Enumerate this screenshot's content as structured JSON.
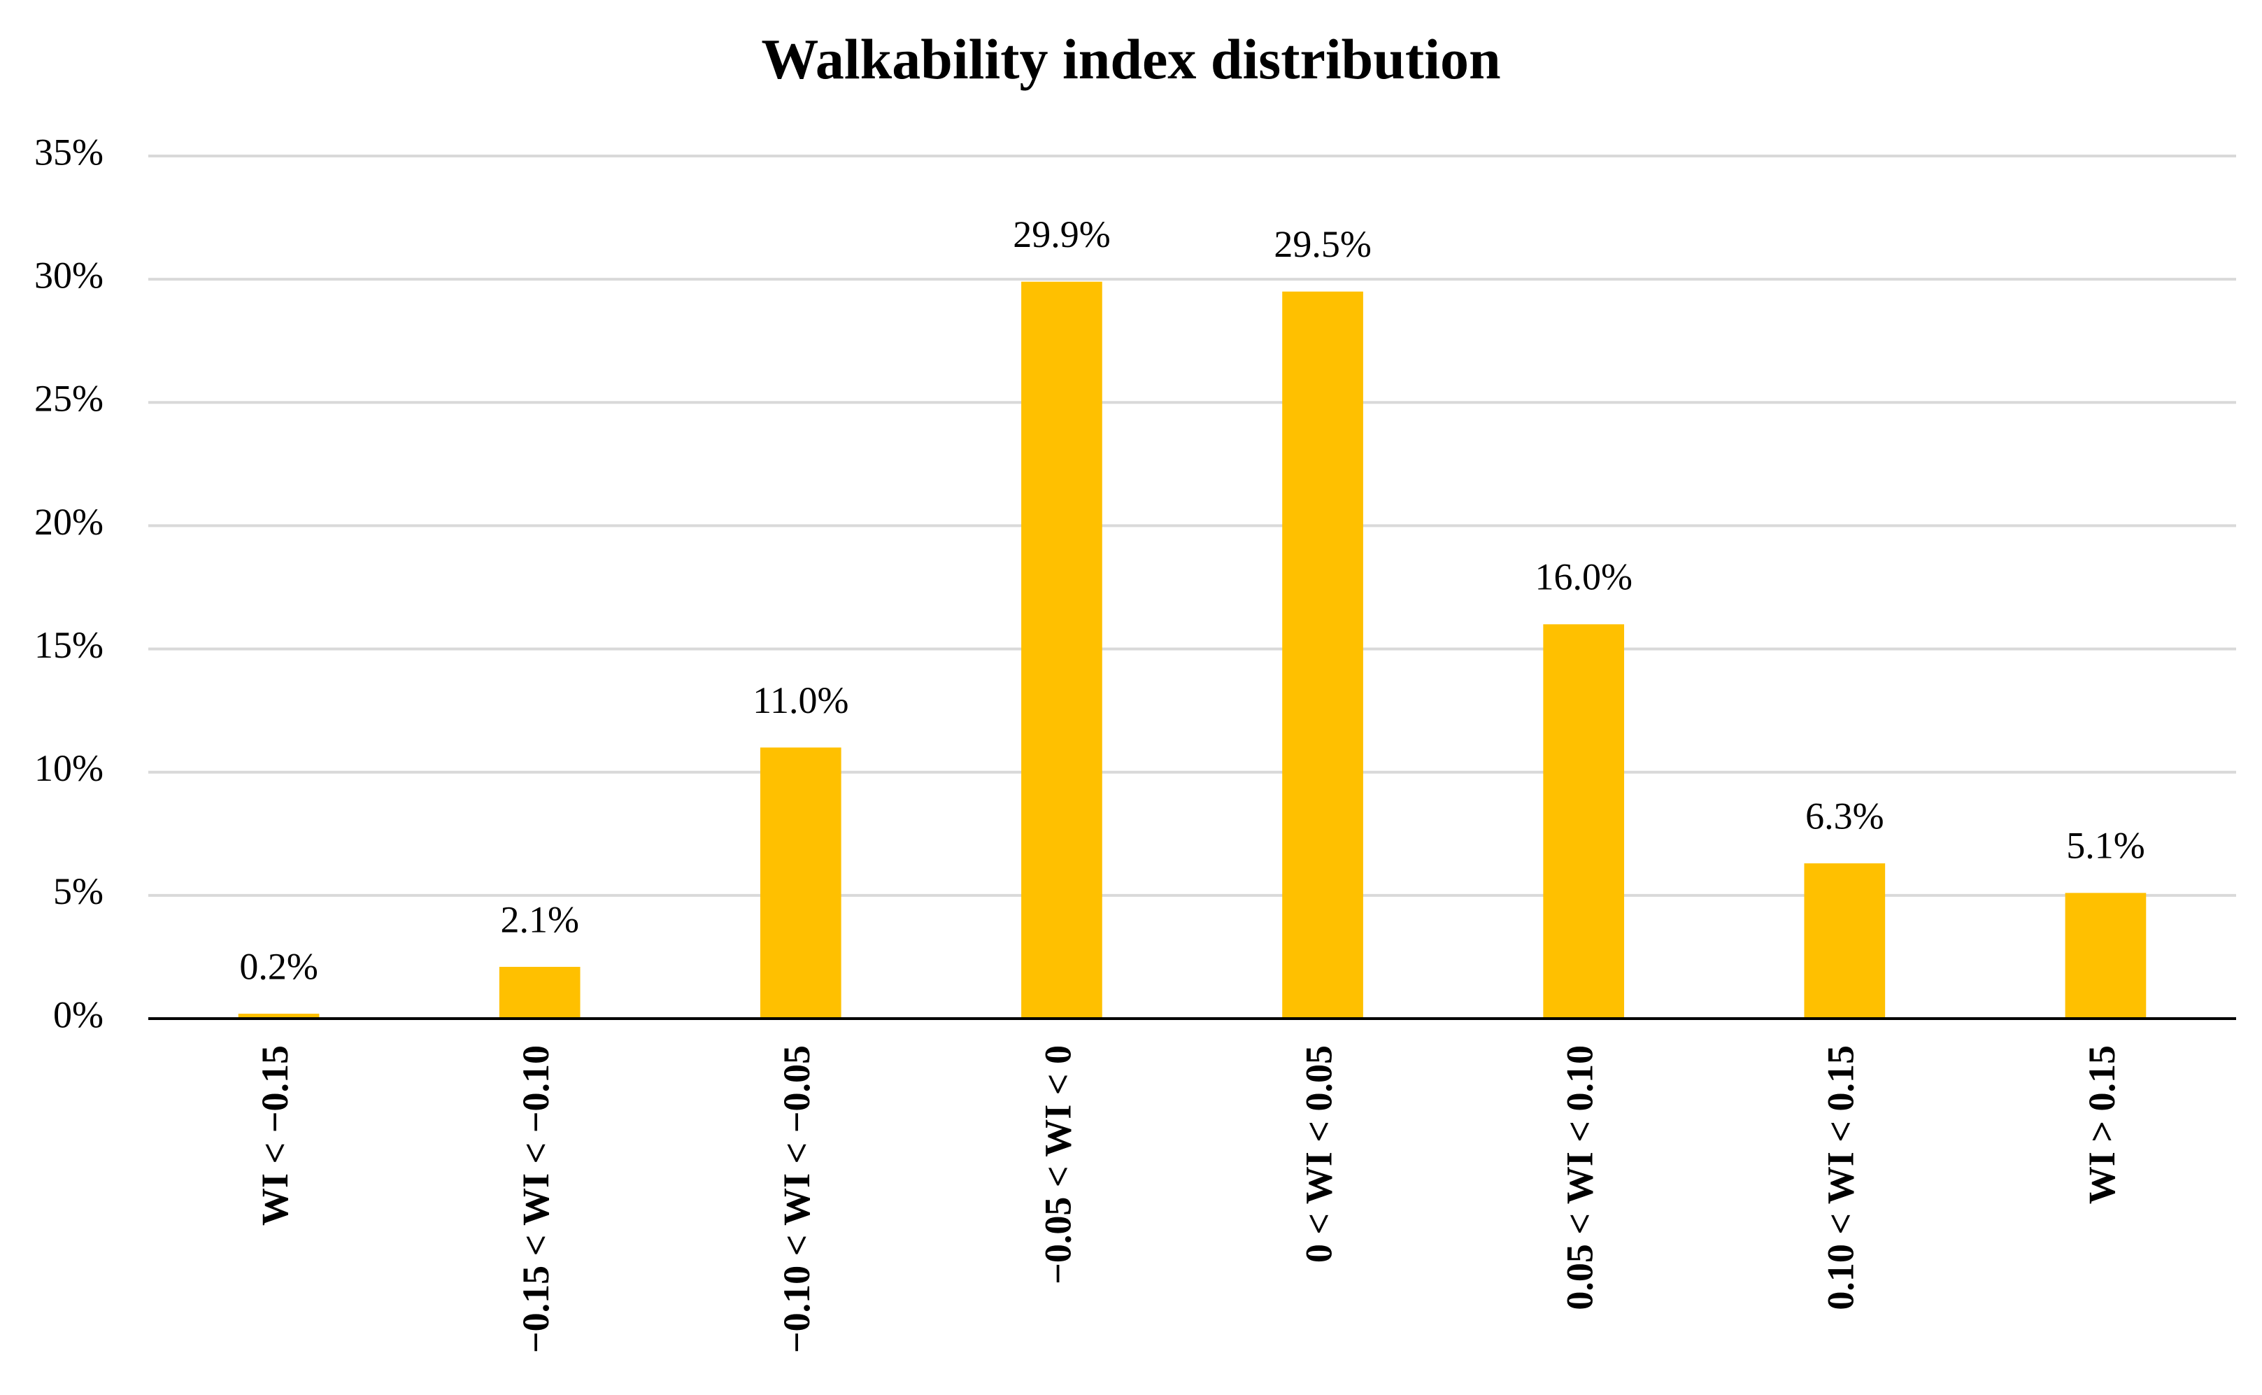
{
  "chart_data": {
    "type": "bar",
    "title": "Walkability index distribution",
    "categories": [
      "WI < −0.15",
      "−0.15 < WI < −0.10",
      "−0.10 < WI < −0.05",
      "−0.05 < WI < 0",
      "0 < WI < 0.05",
      "0.05 < WI < 0.10",
      "0.10 < WI < 0.15",
      "WI > 0.15"
    ],
    "values": [
      0.2,
      2.1,
      11.0,
      29.9,
      29.5,
      16.0,
      6.3,
      5.1
    ],
    "value_labels": [
      "0.2%",
      "2.1%",
      "11.0%",
      "29.9%",
      "29.5%",
      "16.0%",
      "6.3%",
      "5.1%"
    ],
    "color": "#ffc000",
    "ylim": [
      0,
      35
    ],
    "yticks": [
      {
        "value": 0,
        "label": "0%"
      },
      {
        "value": 5,
        "label": "5%"
      },
      {
        "value": 10,
        "label": "10%"
      },
      {
        "value": 15,
        "label": "15%"
      },
      {
        "value": 20,
        "label": "20%"
      },
      {
        "value": 25,
        "label": "25%"
      },
      {
        "value": 30,
        "label": "30%"
      },
      {
        "value": 35,
        "label": "35%"
      }
    ],
    "grid": true
  }
}
